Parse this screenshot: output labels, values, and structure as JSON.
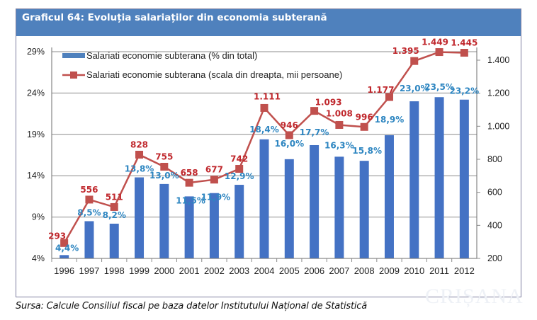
{
  "title": "Graficul 64: Evoluția salariaților din economia subterană",
  "source": "Sursa: Calcule Consiliul fiscal pe baza datelor Institutului Național de Statistică",
  "watermark": "CRIȘANA",
  "colors": {
    "header": "#4f81bd",
    "bar": "#4472c4",
    "line": "#c0504d",
    "bar_label": "#2e86c1",
    "line_label": "#c0282d"
  },
  "chart_data": {
    "type": "bar+line",
    "title": "Graficul 64: Evoluția salariaților din economia subterană",
    "categories": [
      "1996",
      "1997",
      "1998",
      "1999",
      "2000",
      "2001",
      "2002",
      "2003",
      "2004",
      "2005",
      "2006",
      "2007",
      "2008",
      "2009",
      "2010",
      "2011",
      "2012"
    ],
    "series": [
      {
        "name": "Salariati economie subterana (% din total)",
        "type": "bar",
        "axis": "left",
        "values": [
          4.4,
          8.5,
          8.2,
          13.8,
          13.0,
          11.5,
          11.9,
          12.9,
          18.4,
          16.0,
          17.7,
          16.3,
          15.8,
          18.9,
          23.0,
          23.5,
          23.2
        ],
        "labels": [
          "4,4%",
          "8,5%",
          "8,2%",
          "13,8%",
          "13,0%",
          "11,5%",
          "11,9%",
          "12,9%",
          "18,4%",
          "16,0%",
          "17,7%",
          "16,3%",
          "15,8%",
          "18,9%",
          "23,0%",
          "23,5%",
          "23,2%"
        ]
      },
      {
        "name": "Salariati economie subterana (scala din dreapta, mii persoane)",
        "type": "line",
        "axis": "right",
        "values": [
          293,
          556,
          511,
          828,
          755,
          658,
          677,
          742,
          1111,
          946,
          1093,
          1008,
          996,
          1177,
          1395,
          1449,
          1445
        ],
        "labels": [
          "293",
          "556",
          "511",
          "828",
          "755",
          "658",
          "677",
          "742",
          "1.111",
          "946",
          "1.093",
          "1.008",
          "996",
          "1.177",
          "1.395",
          "1.449",
          "1.445"
        ]
      }
    ],
    "y_left": {
      "ylim": [
        4,
        29
      ],
      "ticks": [
        4,
        9,
        14,
        19,
        24,
        29
      ],
      "tick_labels": [
        "4%",
        "9%",
        "14%",
        "19%",
        "24%",
        "29%"
      ]
    },
    "y_right": {
      "ylim": [
        200,
        1400
      ],
      "ticks": [
        200,
        400,
        600,
        800,
        1000,
        1200,
        1400
      ],
      "tick_labels": [
        "200",
        "400",
        "600",
        "800",
        "1.000",
        "1.200",
        "1.400"
      ]
    },
    "grid": true,
    "legend": "top-left"
  }
}
